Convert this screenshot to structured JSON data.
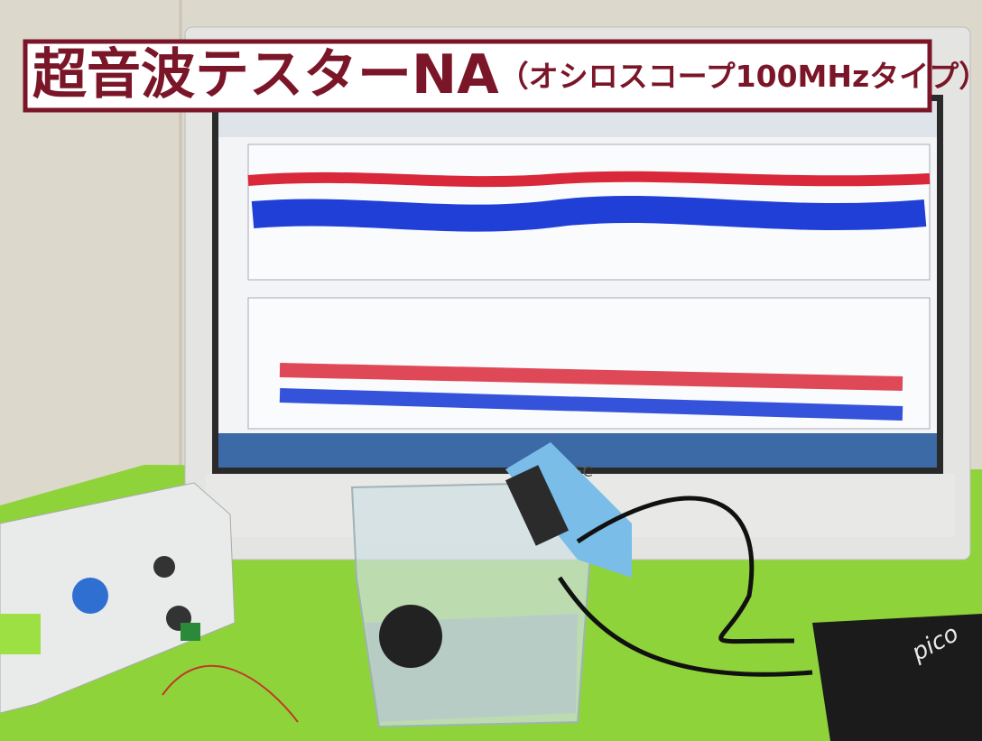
{
  "banner": {
    "title": "超音波テスターNA",
    "subtitle": "（オシロスコープ100MHzタイプ）"
  },
  "monitor": {
    "brand": "NEC"
  },
  "device": {
    "brand": "pico"
  }
}
